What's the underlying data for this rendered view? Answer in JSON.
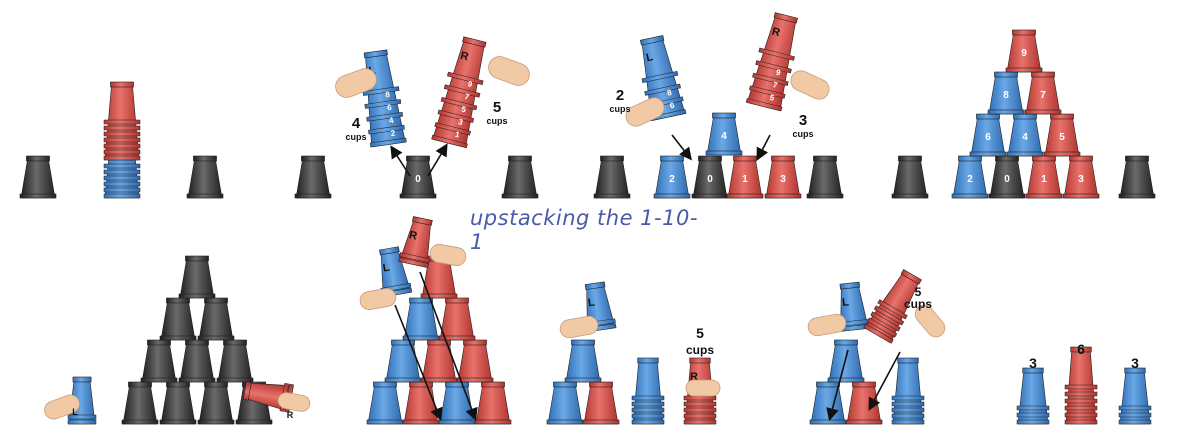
{
  "caption": "upstacking the 1-10-1",
  "colors": {
    "blue": "#4a8fd6",
    "red": "#d8504a",
    "gray": "#3a3a3a",
    "skin": "#f1c9a5"
  },
  "cup_labels": {
    "left": "L",
    "right": "R",
    "n0": "0",
    "n1": "1",
    "n2": "2",
    "n3": "3",
    "n4": "4",
    "n5": "5",
    "n6": "6",
    "n7": "7",
    "n8": "8",
    "n9": "9"
  },
  "labels": {
    "p2_left_num": "4",
    "p2_right_num": "5",
    "p3_left_num": "2",
    "p3_right_num": "3",
    "cups": "cups",
    "p7_num": "5",
    "p7_cups": "cups",
    "p8_num": "5",
    "p8_cups": "cups",
    "p9_left": "3",
    "p9_mid": "6",
    "p9_right": "3"
  }
}
